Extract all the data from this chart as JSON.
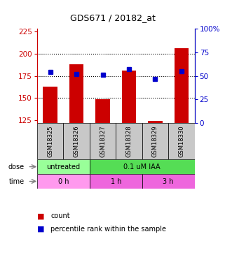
{
  "title": "GDS671 / 20182_at",
  "samples": [
    "GSM18325",
    "GSM18326",
    "GSM18327",
    "GSM18328",
    "GSM18329",
    "GSM18330"
  ],
  "bar_values": [
    163,
    188,
    149,
    181,
    124,
    206
  ],
  "blue_values": [
    54,
    52,
    51,
    57,
    47,
    55
  ],
  "bar_bottom": 122,
  "left_ylim": [
    122,
    228
  ],
  "right_ylim": [
    0,
    100
  ],
  "left_yticks": [
    125,
    150,
    175,
    200,
    225
  ],
  "right_yticks": [
    0,
    25,
    50,
    75,
    100
  ],
  "bar_color": "#cc0000",
  "blue_color": "#0000cc",
  "dose_labels": [
    {
      "label": "untreated",
      "start": 0,
      "end": 2,
      "color": "#99ff99"
    },
    {
      "label": "0.1 uM IAA",
      "start": 2,
      "end": 6,
      "color": "#55dd55"
    }
  ],
  "time_labels": [
    {
      "label": "0 h",
      "start": 0,
      "end": 2,
      "color": "#ff99ee"
    },
    {
      "label": "1 h",
      "start": 2,
      "end": 4,
      "color": "#ee66dd"
    },
    {
      "label": "3 h",
      "start": 4,
      "end": 6,
      "color": "#ee66dd"
    }
  ],
  "grid_color": "black",
  "left_axis_color": "#cc0000",
  "right_axis_color": "#0000cc",
  "legend_red_label": "count",
  "legend_blue_label": "percentile rank within the sample",
  "sample_box_color": "#c8c8c8",
  "bar_xlim": [
    -0.5,
    5.5
  ]
}
